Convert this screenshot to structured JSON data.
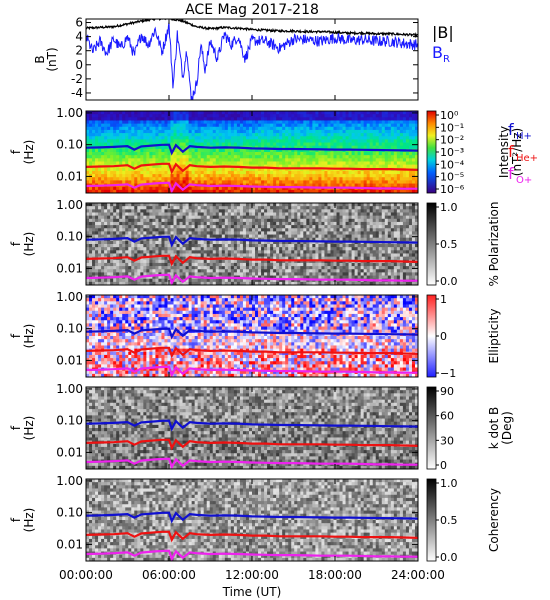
{
  "chart_data": {
    "type": "heatmap",
    "title": "ACE Mag 2017-218",
    "colors": {
      "btotal": "#000000",
      "br": "#1a1aff",
      "fH": "#1010d0",
      "fHe": "#ee1111",
      "fO": "#ee22ee",
      "axis": "#000000"
    },
    "xaxis": {
      "label": "Time (UT)",
      "ticks": [
        "00:00:00",
        "06:00:00",
        "12:00:00",
        "18:00:00",
        "24:00:00"
      ],
      "range_hours": [
        0,
        24
      ]
    },
    "panels": [
      {
        "id": "field",
        "type": "line",
        "ylabel": "B",
        "yunit": "(nT)",
        "yticks": [
          "6",
          "4",
          "2",
          "0",
          "-2",
          "-4"
        ],
        "yrange": [
          -5,
          6.5
        ],
        "legend": [
          "|B|",
          "B",
          "R"
        ],
        "series": [
          {
            "name": "|B|",
            "color_key": "btotal",
            "x": [
              0,
              1,
              2,
              3,
              4,
              5,
              6,
              7,
              7.5,
              8,
              9,
              10,
              11,
              12,
              13,
              14,
              15,
              16,
              17,
              18,
              19,
              20,
              21,
              22,
              23,
              24
            ],
            "values": [
              5.2,
              5.3,
              5.4,
              5.8,
              6.2,
              6.5,
              6.6,
              6.2,
              5.8,
              5.4,
              5.1,
              5.3,
              5.2,
              5.0,
              4.9,
              4.8,
              4.8,
              4.7,
              4.7,
              4.6,
              4.5,
              4.5,
              4.4,
              4.4,
              4.3,
              4.2
            ]
          },
          {
            "name": "B",
            "color_key": "br",
            "x": [
              0,
              0.5,
              1,
              1.5,
              2,
              2.5,
              3,
              3.5,
              4,
              4.5,
              5,
              5.5,
              6,
              6.3,
              6.6,
              7,
              7.3,
              7.6,
              8,
              8.3,
              8.6,
              9,
              9.5,
              10,
              10.5,
              11,
              11.5,
              12,
              13,
              14,
              15,
              16,
              17,
              18,
              19,
              20,
              21,
              22,
              23,
              24
            ],
            "values": [
              4.2,
              2.0,
              3.5,
              1.8,
              3.8,
              2.5,
              4.1,
              1.5,
              4.5,
              3.0,
              5.2,
              2.0,
              5.8,
              -3.0,
              4.5,
              -1.5,
              2.5,
              -4.8,
              -2.5,
              3.0,
              -0.5,
              3.5,
              1.0,
              4.5,
              3.0,
              4.2,
              1.0,
              3.6,
              3.5,
              2.5,
              3.8,
              3.7,
              3.5,
              4.0,
              3.6,
              3.7,
              3.5,
              3.5,
              3.2,
              3.0
            ]
          }
        ]
      },
      {
        "id": "intensity",
        "type": "heatmap",
        "ylabel": "f",
        "yunit": "(Hz)",
        "yticks": [
          "1.00",
          "0.10",
          "0.01"
        ],
        "colorbar_label": "Intensity",
        "colorbar_unit": "(nT²/Hz)",
        "colorbar_ticks": [
          "10⁰",
          "10⁻¹",
          "10⁻²",
          "10⁻³",
          "10⁻⁴",
          "10⁻⁵",
          "10⁻⁶"
        ],
        "colorbar_range": [
          0,
          -6
        ],
        "legend": [
          {
            "label": "f",
            "sub": "H+",
            "color_key": "fH"
          },
          {
            "label": "f",
            "sub": "He+",
            "color_key": "fHe"
          },
          {
            "label": "f",
            "sub": "O+",
            "color_key": "fO"
          }
        ]
      },
      {
        "id": "polarization",
        "type": "heatmap",
        "ylabel": "f",
        "yunit": "(Hz)",
        "yticks": [
          "1.00",
          "0.10",
          "0.01"
        ],
        "colorbar_label": "% Polarization",
        "colorbar_ticks": [
          "1.0",
          "0.5",
          "0.0"
        ],
        "colorbar_range": [
          0,
          1
        ]
      },
      {
        "id": "ellipticity",
        "type": "heatmap",
        "ylabel": "f",
        "yunit": "(Hz)",
        "yticks": [
          "1.00",
          "0.10",
          "0.01"
        ],
        "colorbar_label": "Ellipticity",
        "colorbar_ticks": [
          "1",
          "0",
          "−1"
        ],
        "colorbar_range": [
          -1,
          1
        ]
      },
      {
        "id": "kdotb",
        "type": "heatmap",
        "ylabel": "f",
        "yunit": "(Hz)",
        "yticks": [
          "1.00",
          "0.10",
          "0.01"
        ],
        "colorbar_label": "k dot B",
        "colorbar_unit": "(Deg)",
        "colorbar_ticks": [
          "90",
          "60",
          "30",
          "0"
        ],
        "colorbar_range": [
          0,
          90
        ]
      },
      {
        "id": "coherency",
        "type": "heatmap",
        "ylabel": "f",
        "yunit": "(Hz)",
        "yticks": [
          "1.00",
          "0.10",
          "0.01"
        ],
        "colorbar_label": "Coherency",
        "colorbar_ticks": [
          "1.0",
          "0.5",
          "0.0"
        ],
        "colorbar_range": [
          0,
          1
        ]
      }
    ],
    "gyrofrequency_lines": {
      "x_hours": [
        0,
        1,
        2,
        3,
        3.5,
        4,
        5,
        5.5,
        6,
        6.2,
        6.5,
        7,
        7.5,
        8,
        9,
        10,
        11,
        12,
        13,
        14,
        15,
        16,
        17,
        18,
        19,
        20,
        21,
        22,
        23,
        24
      ],
      "fH_Hz": [
        0.08,
        0.082,
        0.085,
        0.09,
        0.07,
        0.088,
        0.095,
        0.099,
        0.1,
        0.055,
        0.096,
        0.06,
        0.09,
        0.085,
        0.08,
        0.082,
        0.081,
        0.076,
        0.075,
        0.073,
        0.073,
        0.072,
        0.071,
        0.07,
        0.07,
        0.069,
        0.068,
        0.067,
        0.066,
        0.065
      ],
      "fHe_Hz": [
        0.02,
        0.0205,
        0.021,
        0.0225,
        0.0175,
        0.022,
        0.024,
        0.025,
        0.025,
        0.014,
        0.024,
        0.015,
        0.0225,
        0.021,
        0.02,
        0.0205,
        0.02,
        0.019,
        0.019,
        0.018,
        0.018,
        0.018,
        0.018,
        0.0175,
        0.0175,
        0.017,
        0.017,
        0.017,
        0.0165,
        0.016
      ],
      "fO_Hz": [
        0.005,
        0.0051,
        0.0053,
        0.0056,
        0.0044,
        0.0055,
        0.006,
        0.0062,
        0.0063,
        0.0035,
        0.006,
        0.0038,
        0.0056,
        0.0053,
        0.005,
        0.0051,
        0.005,
        0.0048,
        0.0047,
        0.0046,
        0.0046,
        0.0045,
        0.0044,
        0.0044,
        0.0044,
        0.0043,
        0.0042,
        0.0042,
        0.0041,
        0.0041
      ]
    }
  }
}
